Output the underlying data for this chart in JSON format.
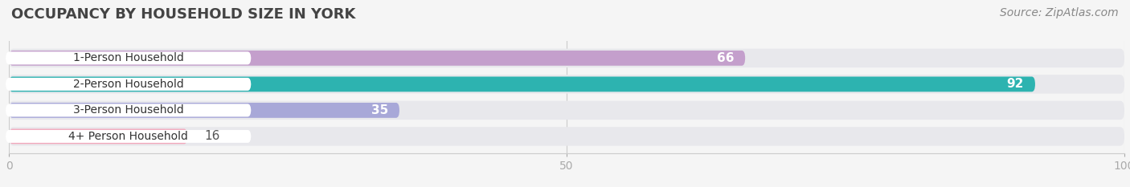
{
  "title": "OCCUPANCY BY HOUSEHOLD SIZE IN YORK",
  "source": "Source: ZipAtlas.com",
  "categories": [
    "1-Person Household",
    "2-Person Household",
    "3-Person Household",
    "4+ Person Household"
  ],
  "values": [
    66,
    92,
    35,
    16
  ],
  "bar_colors": [
    "#c49fcc",
    "#2db3b0",
    "#a8a8d8",
    "#f2a8bc"
  ],
  "background_color": "#f5f5f5",
  "bar_bg_color": "#e8e8ec",
  "bar_bg_color_alt": "#ebebef",
  "xlim": [
    0,
    100
  ],
  "xticks": [
    0,
    50,
    100
  ],
  "label_color_inside": "#ffffff",
  "label_color_outside": "#555555",
  "title_fontsize": 13,
  "source_fontsize": 10,
  "bar_label_fontsize": 11,
  "category_fontsize": 10,
  "tick_fontsize": 10,
  "pill_color": "#ffffff",
  "pill_text_color": "#333333"
}
